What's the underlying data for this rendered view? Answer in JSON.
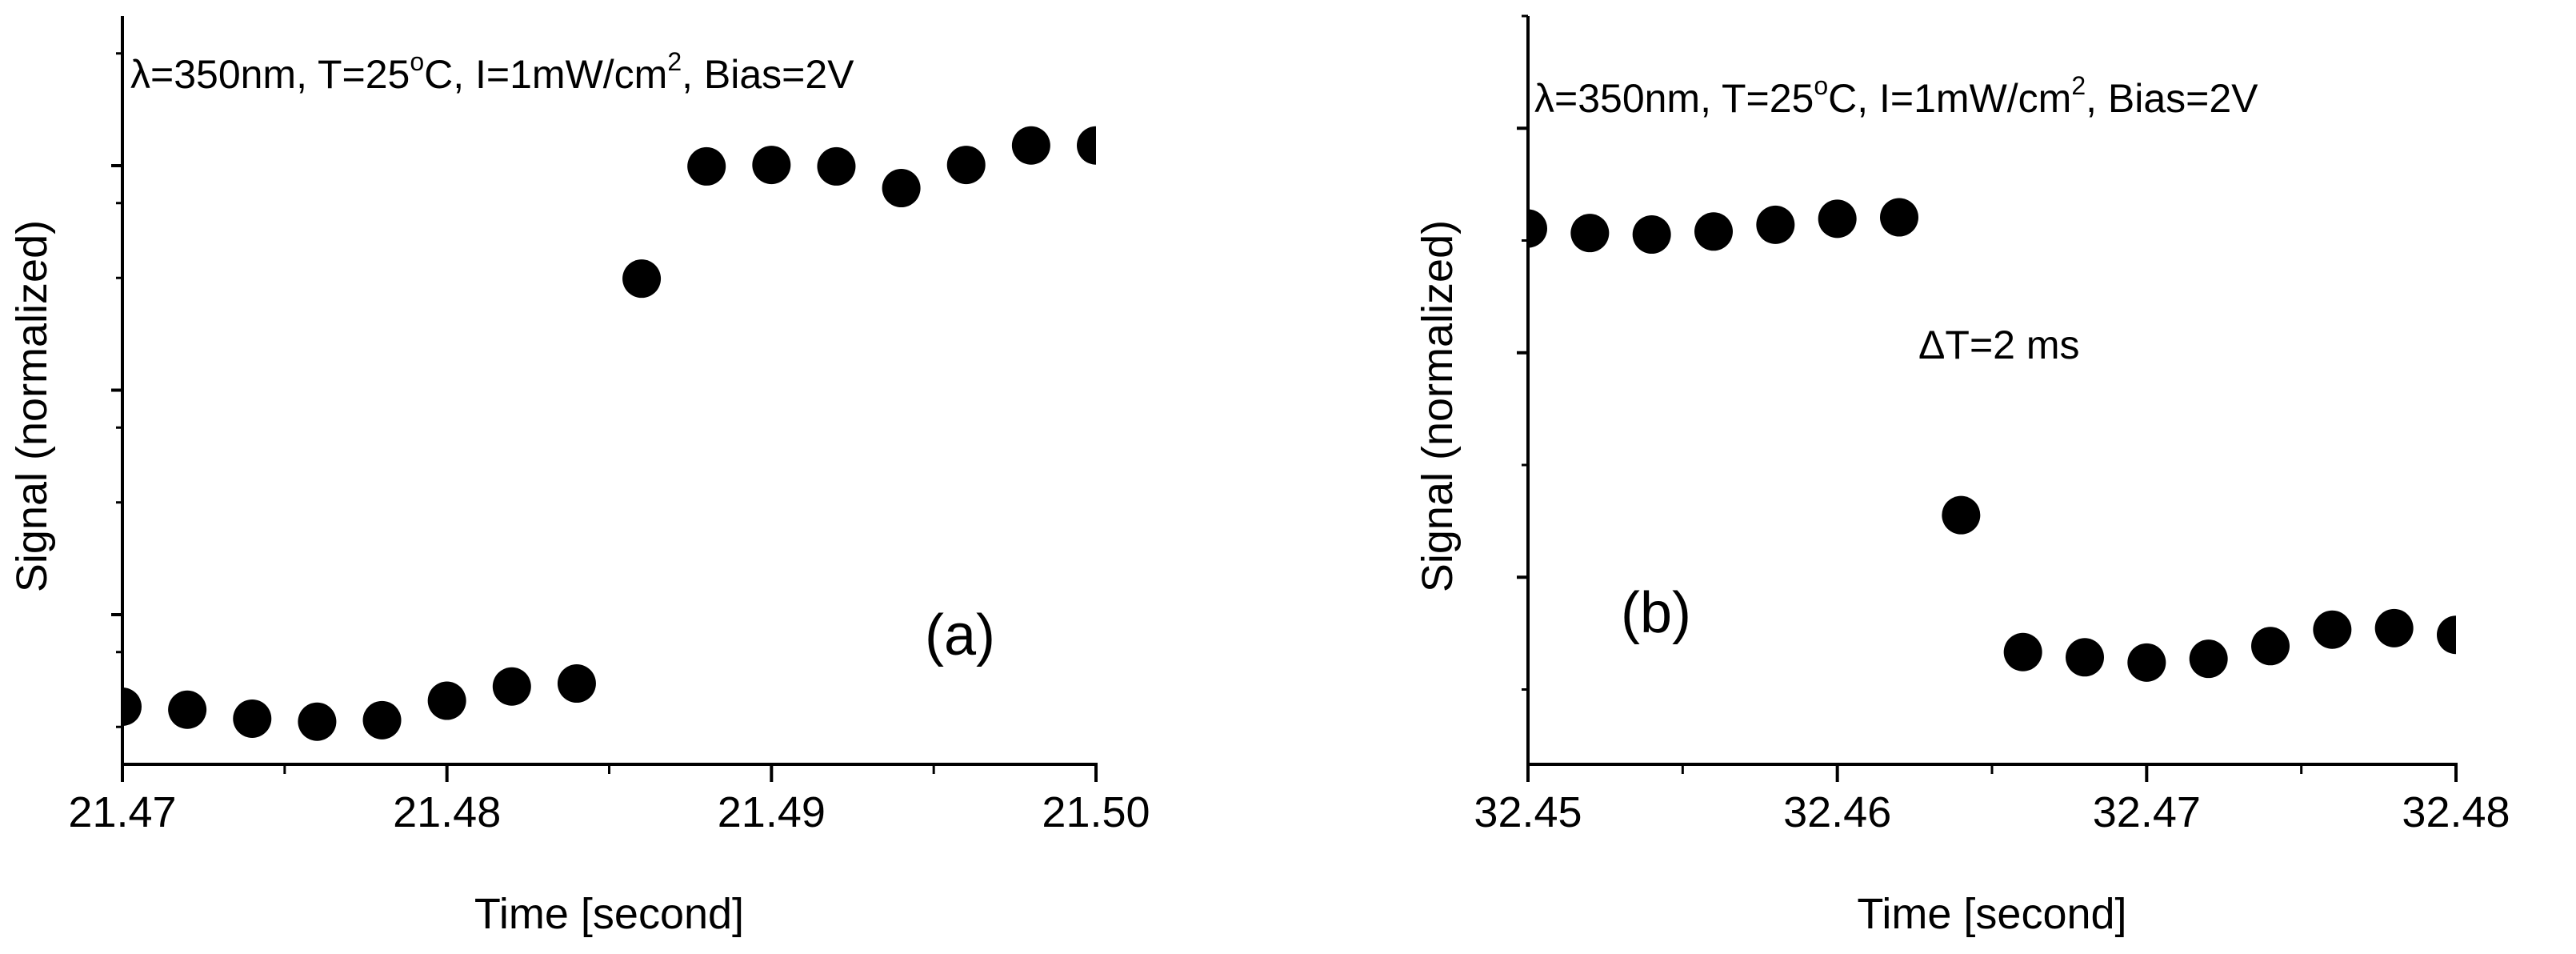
{
  "chart_data": [
    {
      "id": "a",
      "type": "scatter",
      "panel_label": "(a)",
      "annotation": {
        "lambda": "λ",
        "pre": "=350nm, T=25",
        "deg": "o",
        "post1": "C, I=1mW/cm",
        "sq": "2",
        "post2": ", Bias=2V"
      },
      "xlabel": "Time [second]",
      "ylabel": "Signal (normalized)",
      "xlim": [
        21.47,
        21.5
      ],
      "ylim": [
        0,
        1
      ],
      "x_major_ticks": [
        21.47,
        21.48,
        21.49,
        21.5
      ],
      "x_tick_labels": [
        "21.47",
        "21.48",
        "21.49",
        "21.50"
      ],
      "y_major_ticks": [
        0.2,
        0.5,
        0.8
      ],
      "y_minor_ticks": [
        0.05,
        0.15,
        0.35,
        0.45,
        0.65,
        0.75,
        0.95
      ],
      "marker_color": "#000000",
      "x": [
        21.47,
        21.472,
        21.474,
        21.476,
        21.478,
        21.48,
        21.482,
        21.484,
        21.486,
        21.488,
        21.49,
        21.492,
        21.494,
        21.496,
        21.498,
        21.5
      ],
      "y": [
        0.077,
        0.073,
        0.061,
        0.057,
        0.059,
        0.085,
        0.104,
        0.108,
        0.649,
        0.799,
        0.801,
        0.799,
        0.77,
        0.801,
        0.827,
        0.827
      ]
    },
    {
      "id": "b",
      "type": "scatter",
      "panel_label": "(b)",
      "annotation": {
        "lambda": "λ",
        "pre": "=350nm, T=25",
        "deg": "o",
        "post1": "C, I=1mW/cm",
        "sq": "2",
        "post2": ", Bias=2V"
      },
      "inner_text": {
        "delta": "Δ",
        "rest": "T=2 ms"
      },
      "xlabel": "Time [second]",
      "ylabel": "Signal (normalized)",
      "xlim": [
        32.45,
        32.48
      ],
      "ylim": [
        0,
        1
      ],
      "x_major_ticks": [
        32.45,
        32.46,
        32.47,
        32.48
      ],
      "x_tick_labels": [
        "32.45",
        "32.46",
        "32.47",
        "32.48"
      ],
      "y_major_ticks": [
        0.25,
        0.55,
        0.85
      ],
      "y_minor_ticks": [
        0.1,
        0.4,
        0.7,
        1.0
      ],
      "marker_color": "#000000",
      "x": [
        32.45,
        32.452,
        32.454,
        32.456,
        32.458,
        32.46,
        32.462,
        32.464,
        32.466,
        32.468,
        32.47,
        32.472,
        32.474,
        32.476,
        32.478,
        32.48
      ],
      "y": [
        0.716,
        0.71,
        0.708,
        0.712,
        0.721,
        0.729,
        0.731,
        0.333,
        0.15,
        0.143,
        0.136,
        0.141,
        0.158,
        0.18,
        0.182,
        0.173
      ]
    }
  ]
}
